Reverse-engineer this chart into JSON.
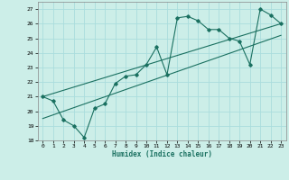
{
  "xlabel": "Humidex (Indice chaleur)",
  "background_color": "#cceee8",
  "grid_color": "#aadddd",
  "line_color": "#1a7060",
  "xlim": [
    -0.5,
    23.5
  ],
  "ylim": [
    18,
    27.5
  ],
  "xticks": [
    0,
    1,
    2,
    3,
    4,
    5,
    6,
    7,
    8,
    9,
    10,
    11,
    12,
    13,
    14,
    15,
    16,
    17,
    18,
    19,
    20,
    21,
    22,
    23
  ],
  "yticks": [
    18,
    19,
    20,
    21,
    22,
    23,
    24,
    25,
    26,
    27
  ],
  "line1_x": [
    0,
    1,
    2,
    3,
    4,
    5,
    6,
    7,
    8,
    9,
    10,
    11,
    12,
    13,
    14,
    15,
    16,
    17,
    18,
    19,
    20,
    21,
    22,
    23
  ],
  "line1_y": [
    21.0,
    20.7,
    19.4,
    19.0,
    18.2,
    20.2,
    20.5,
    21.9,
    22.4,
    22.5,
    23.2,
    24.4,
    22.5,
    26.4,
    26.5,
    26.2,
    25.6,
    25.6,
    25.0,
    24.8,
    23.2,
    27.0,
    26.6,
    26.0
  ],
  "line2_x": [
    0,
    23
  ],
  "line2_y": [
    21.0,
    26.0
  ],
  "line3_x": [
    0,
    23
  ],
  "line3_y": [
    19.5,
    25.2
  ]
}
